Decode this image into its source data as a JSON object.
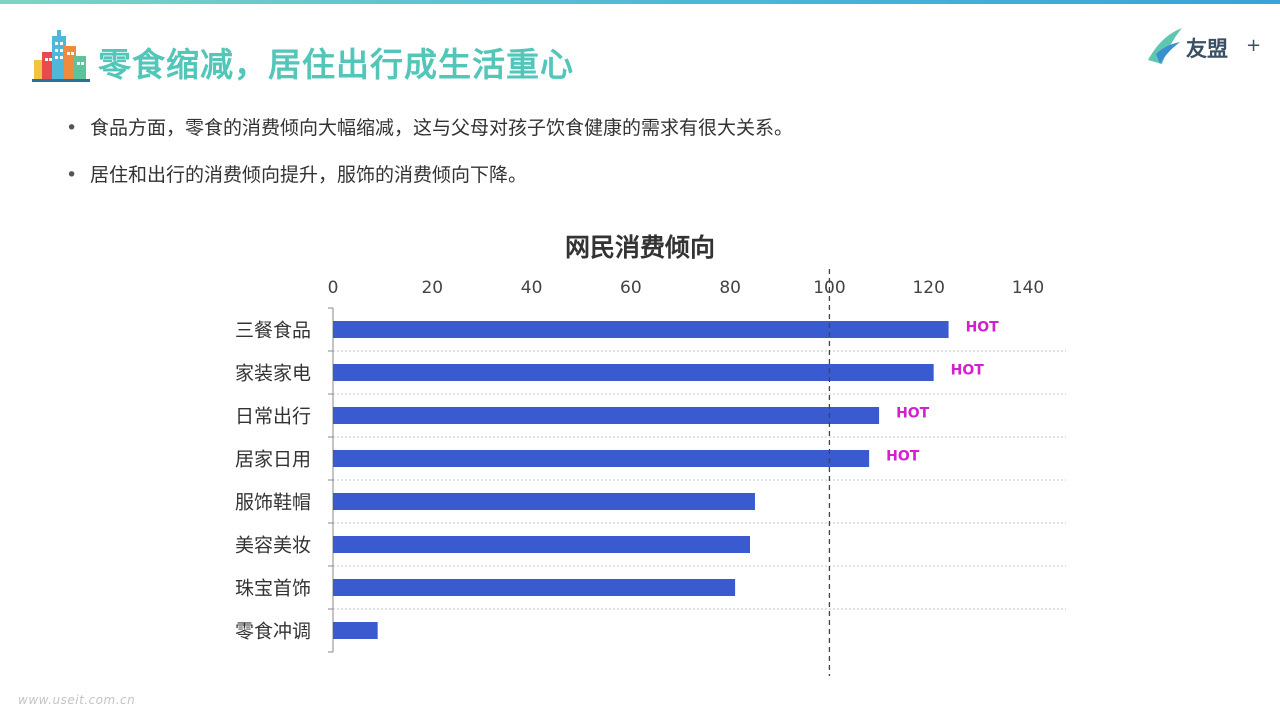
{
  "header": {
    "title": "零食缩减，居住出行成生活重心",
    "brand_name": "友盟",
    "brand_plus": "+"
  },
  "bullets": [
    "食品方面，零食的消费倾向大幅缩减，这与父母对孩子饮食健康的需求有很大关系。",
    "居住和出行的消费倾向提升，服饰的消费倾向下降。"
  ],
  "footer": {
    "watermark": "www.useit.com.cn"
  },
  "colors": {
    "bar": "#3a5bd0",
    "hot": "#d41fd0",
    "title_accent": "#52c6b8",
    "reference_line": "#444444"
  },
  "chart_data": {
    "type": "bar",
    "orientation": "horizontal",
    "title": "网民消费倾向",
    "xlabel": "",
    "ylabel": "",
    "xlim": [
      0,
      140
    ],
    "xticks": [
      0,
      20,
      40,
      60,
      80,
      100,
      120,
      140
    ],
    "x_axis_position": "top",
    "reference_line": 100,
    "grid": "horizontal dotted separators",
    "legend": "none",
    "categories": [
      "三餐食品",
      "家装家电",
      "日常出行",
      "居家日用",
      "服饰鞋帽",
      "美容美妆",
      "珠宝首饰",
      "零食冲调"
    ],
    "values": [
      124,
      121,
      110,
      108,
      85,
      84,
      81,
      9
    ],
    "annotations": [
      "HOT",
      "HOT",
      "HOT",
      "HOT",
      "",
      "",
      "",
      ""
    ]
  }
}
